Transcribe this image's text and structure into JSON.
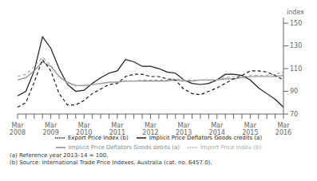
{
  "chart_data": {
    "type": "line",
    "ylabel": "index",
    "ylim": [
      70,
      155
    ],
    "yticks": [
      70,
      90,
      110,
      130,
      150
    ],
    "grid": false,
    "legend": "bottom",
    "annotations": [
      "(a) Reference year 2013–14 = 100.",
      "(b) Source: International Trade Price Indexes, Australia (cat. no. 6457.0)."
    ],
    "categories": [
      "Mar\n2008",
      null,
      null,
      null,
      "Mar\n2009",
      null,
      null,
      null,
      "Mar\n2010",
      null,
      null,
      null,
      "Mar\n2011",
      null,
      null,
      null,
      "Mar\n2012",
      null,
      null,
      null,
      "Mar\n2013",
      null,
      null,
      null,
      "Mar\n2014",
      null,
      null,
      null,
      "Mar\n2015",
      null,
      null,
      null,
      "Mar\n2016"
    ],
    "series": [
      {
        "name": "Implicit Price Deflators Goods credits (a)",
        "color": "#1a1a1a",
        "line_style": "solid",
        "values": [
          86,
          90,
          108,
          138,
          128,
          110,
          96,
          90,
          91,
          97,
          102,
          106,
          108,
          118,
          116,
          112,
          112,
          110,
          107,
          106,
          100,
          97,
          96,
          97,
          100,
          105,
          105,
          104,
          100,
          93,
          88,
          83,
          76
        ]
      },
      {
        "name": "Implicit Price Deflators Goods debits (a)",
        "color": "#888888",
        "line_style": "solid",
        "values": [
          100,
          102,
          108,
          116,
          112,
          103,
          98,
          95,
          95,
          96,
          97,
          98,
          98,
          99,
          99,
          99,
          99,
          99,
          99,
          100,
          99,
          99,
          100,
          100,
          100,
          101,
          101,
          102,
          103,
          103,
          103,
          103,
          104
        ]
      },
      {
        "name": "Export Price Index (b)",
        "color": "#1a1a1a",
        "line_style": "dashed",
        "values": [
          76,
          80,
          98,
          118,
          108,
          88,
          78,
          78,
          82,
          88,
          92,
          96,
          97,
          103,
          105,
          105,
          103,
          103,
          101,
          100,
          92,
          88,
          87,
          90,
          93,
          97,
          101,
          104,
          108,
          108,
          107,
          104,
          100
        ]
      },
      {
        "name": "Import Price Index (b)",
        "color": "#aaaaaa",
        "line_style": "dashed",
        "values": [
          103,
          105,
          112,
          120,
          113,
          103,
          97,
          95,
          95,
          96,
          97,
          98,
          98,
          99,
          99,
          100,
          100,
          100,
          100,
          101,
          100,
          100,
          100,
          100,
          100,
          102,
          103,
          103,
          104,
          104,
          104,
          105,
          107
        ]
      }
    ]
  }
}
